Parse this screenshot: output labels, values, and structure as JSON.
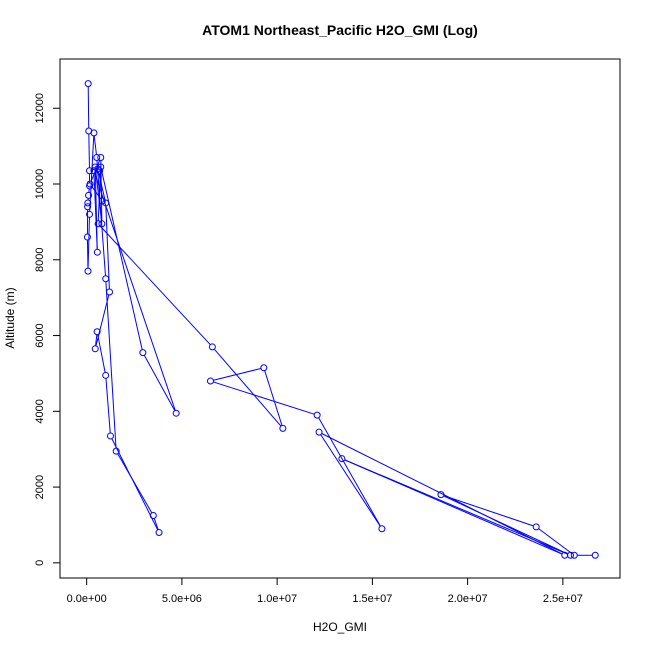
{
  "chart_data": {
    "type": "scatter",
    "title": "ATOM1 Northeast_Pacific H2O_GMI (Log)",
    "xlabel": "H2O_GMI",
    "ylabel": "Altitude (m)",
    "xlim": [
      -1400000.0,
      28000000.0
    ],
    "ylim": [
      -400,
      13300
    ],
    "xticks": [
      0,
      5000000,
      10000000,
      15000000,
      20000000,
      25000000
    ],
    "xtick_labels": [
      "0.0e+00",
      "5.0e+06",
      "1.0e+07",
      "1.5e+07",
      "2.0e+07",
      "2.5e+07"
    ],
    "yticks": [
      0,
      2000,
      4000,
      6000,
      8000,
      10000,
      12000
    ],
    "ytick_labels": [
      "0",
      "2000",
      "4000",
      "6000",
      "8000",
      "10000",
      "12000"
    ],
    "grid": false,
    "legend": "none",
    "marker": "open-circle",
    "connect_points": true,
    "color": "#0000ff",
    "series": [
      {
        "x": [
          80000,
          110000,
          150000,
          150000,
          100000,
          60000,
          50000,
          40000,
          70000,
          150000,
          380000,
          530000,
          1000000,
          1550000,
          3500000,
          3800000,
          1250000,
          1000000,
          550000,
          450000,
          1200000,
          1000000,
          580000,
          680000,
          820000,
          180000,
          740000,
          800000,
          450000,
          560000,
          380000,
          4700000,
          2950000,
          740000,
          600000,
          6600000,
          10300000,
          9300000,
          6500000,
          12100000,
          15500000,
          12200000,
          25100000,
          13400000,
          25400000,
          18600000,
          23600000,
          25600000,
          26700000
        ],
        "y": [
          12650,
          11400,
          10350,
          9950,
          9700,
          9500,
          9400,
          8600,
          7700,
          9200,
          11350,
          10700,
          7500,
          2950,
          1250,
          800,
          3350,
          4950,
          6100,
          5650,
          7150,
          9500,
          10400,
          10350,
          9550,
          10000,
          10700,
          8950,
          10450,
          8200,
          10350,
          3950,
          5550,
          10450,
          8950,
          5700,
          3550,
          5150,
          4800,
          3900,
          900,
          3450,
          200,
          2750,
          200,
          1800,
          950,
          200,
          200
        ]
      }
    ]
  }
}
